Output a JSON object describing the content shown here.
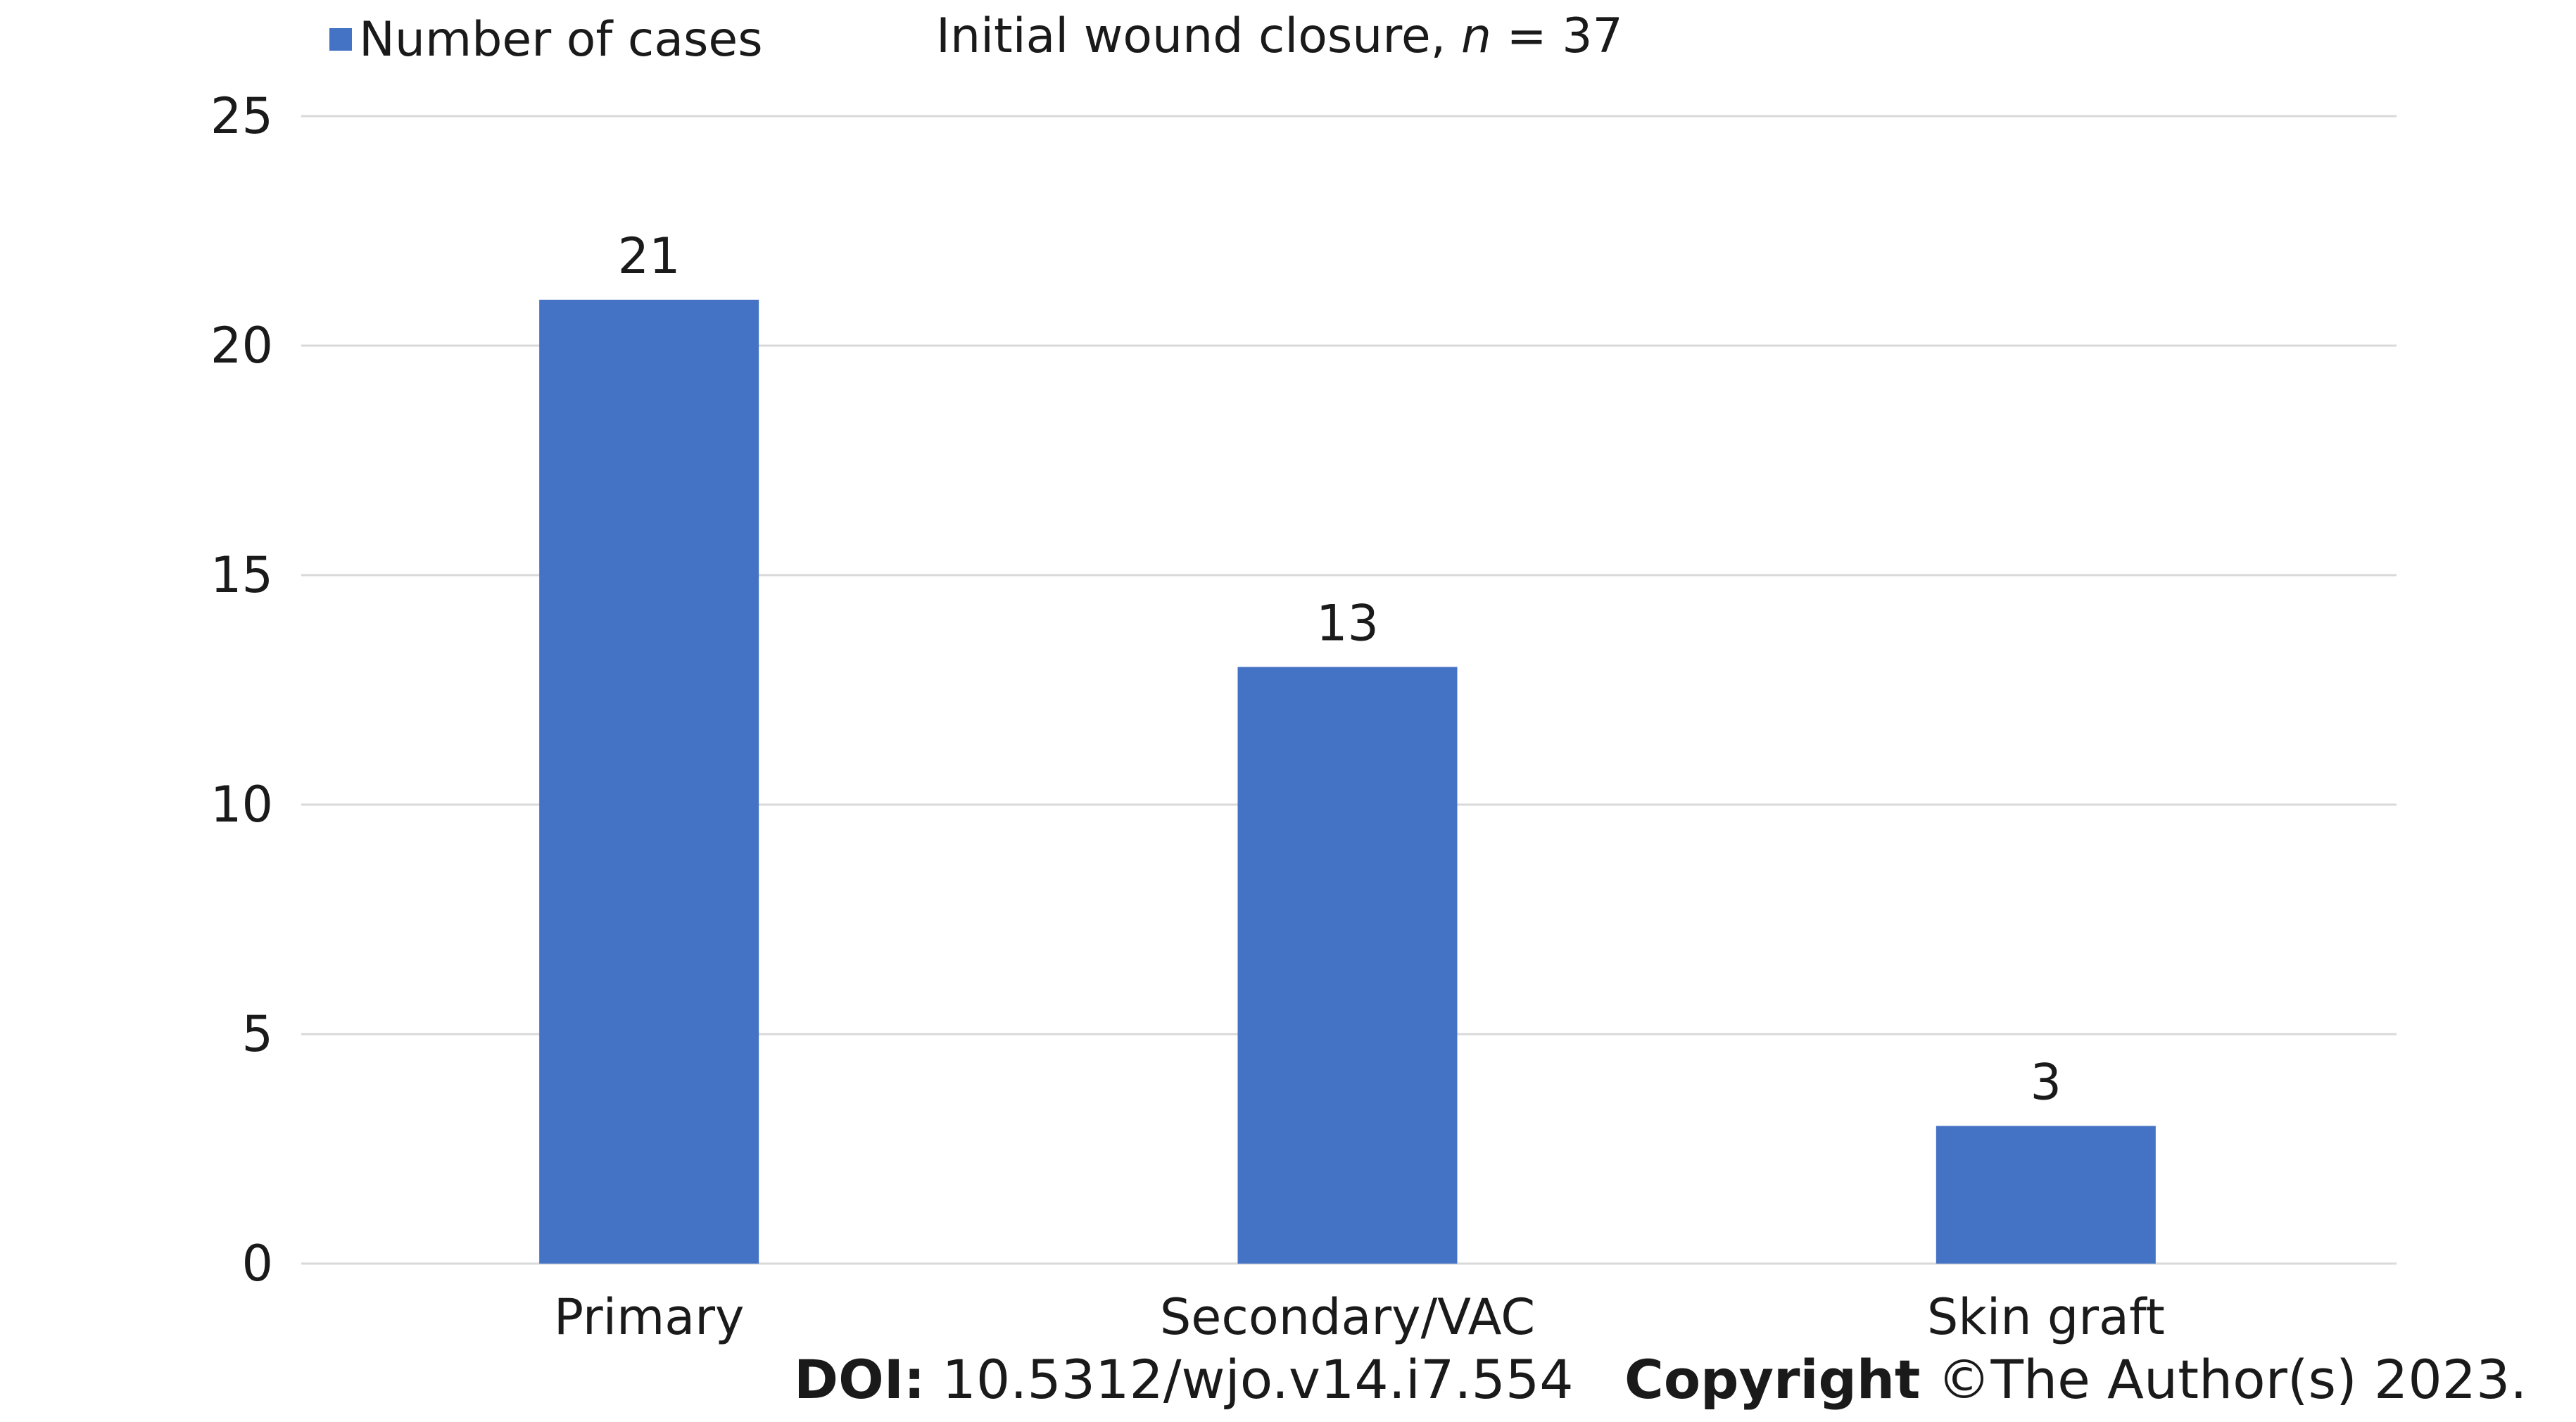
{
  "chart_data": {
    "type": "bar",
    "title_prefix": "Initial wound closure,",
    "title_n_symbol": "n",
    "title_n_value": "= 37",
    "categories": [
      "Primary",
      "Secondary/VAC",
      "Skin graft"
    ],
    "series": [
      {
        "name": "Number of cases",
        "values": [
          21,
          13,
          3
        ]
      }
    ],
    "data_labels": [
      "21",
      "13",
      "3"
    ],
    "ylim": [
      0,
      25
    ],
    "yticks": [
      0,
      5,
      10,
      15,
      20,
      25
    ],
    "xlabel": "",
    "ylabel": "",
    "grid": true,
    "legend_position": "top-left",
    "colors": {
      "bar": "#4472C4",
      "grid": "#D9D9D9",
      "axis": "#D9D9D9",
      "text": "#1a1a1a"
    }
  },
  "footer": {
    "doi_label": "DOI:",
    "doi_value": "10.5312/wjo.v14.i7.554",
    "copyright_label": "Copyright",
    "copyright_value": "©The Author(s) 2023."
  }
}
